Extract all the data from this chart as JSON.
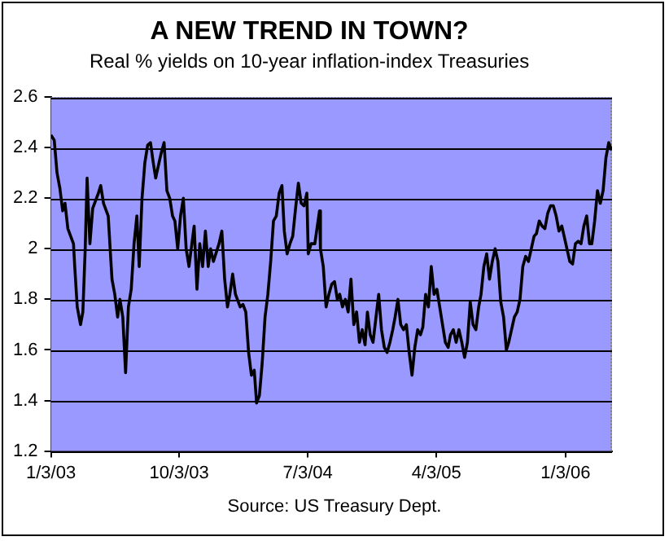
{
  "chart_data": {
    "type": "line",
    "title": "A NEW TREND IN TOWN?",
    "subtitle": "Real % yields on 10-year inflation-index Treasuries",
    "annotations": [
      "Source: US Treasury Dept."
    ],
    "xlim": [
      "2003-01-03",
      "2006-04-12"
    ],
    "xticks": [
      {
        "value": "2003-01-03",
        "label": "1/3/03"
      },
      {
        "value": "2003-10-03",
        "label": "10/3/03"
      },
      {
        "value": "2004-07-03",
        "label": "7/3/04"
      },
      {
        "value": "2005-04-03",
        "label": "4/3/05"
      },
      {
        "value": "2006-01-03",
        "label": "1/3/06"
      }
    ],
    "ylim": [
      1.2,
      2.6
    ],
    "yticks": [
      1.2,
      1.4,
      1.6,
      1.8,
      2,
      2.2,
      2.4,
      2.6
    ],
    "grid": "y",
    "legend": false,
    "marker": "none",
    "line_style": "solid",
    "series": [
      {
        "color": "#000000",
        "x": [
          "2003-01-03",
          "2003-01-10",
          "2003-01-16",
          "2003-01-22",
          "2003-01-28",
          "2003-02-02",
          "2003-02-08",
          "2003-02-14",
          "2003-02-20",
          "2003-02-23",
          "2003-02-28",
          "2003-03-07",
          "2003-03-12",
          "2003-03-17",
          "2003-03-21",
          "2003-03-27",
          "2003-04-02",
          "2003-04-14",
          "2003-04-19",
          "2003-04-25",
          "2003-05-05",
          "2003-05-13",
          "2003-05-19",
          "2003-05-25",
          "2003-05-30",
          "2003-06-05",
          "2003-06-11",
          "2003-06-17",
          "2003-06-23",
          "2003-06-29",
          "2003-07-05",
          "2003-07-10",
          "2003-07-16",
          "2003-07-22",
          "2003-07-28",
          "2003-08-03",
          "2003-08-09",
          "2003-08-14",
          "2003-08-20",
          "2003-08-26",
          "2003-09-01",
          "2003-09-07",
          "2003-09-13",
          "2003-09-19",
          "2003-09-24",
          "2003-09-30",
          "2003-10-06",
          "2003-10-12",
          "2003-10-18",
          "2003-10-24",
          "2003-11-04",
          "2003-11-10",
          "2003-11-16",
          "2003-11-22",
          "2003-11-28",
          "2003-12-04",
          "2003-12-09",
          "2003-12-15",
          "2003-12-27",
          "2004-01-02",
          "2004-01-08",
          "2004-01-14",
          "2004-01-19",
          "2004-01-25",
          "2004-01-31",
          "2004-02-10",
          "2004-02-16",
          "2004-02-22",
          "2004-02-28",
          "2004-03-05",
          "2004-03-11",
          "2004-03-16",
          "2004-03-22",
          "2004-03-28",
          "2004-04-03",
          "2004-04-09",
          "2004-04-15",
          "2004-04-21",
          "2004-04-27",
          "2004-05-03",
          "2004-05-09",
          "2004-05-14",
          "2004-05-20",
          "2004-05-26",
          "2004-06-01",
          "2004-06-07",
          "2004-06-13",
          "2004-06-19",
          "2004-06-25",
          "2004-07-01",
          "2004-07-04",
          "2004-07-10",
          "2004-07-18",
          "2004-07-28",
          "2004-07-30",
          "2004-08-05",
          "2004-08-11",
          "2004-08-17",
          "2004-08-23",
          "2004-08-29",
          "2004-09-04",
          "2004-09-09",
          "2004-09-15",
          "2004-09-21",
          "2004-09-27",
          "2004-10-03",
          "2004-10-09",
          "2004-10-15",
          "2004-10-21",
          "2004-10-27",
          "2004-11-02",
          "2004-11-07",
          "2004-11-13",
          "2004-11-19",
          "2004-12-01",
          "2004-12-07",
          "2004-12-13",
          "2004-12-19",
          "2004-12-25",
          "2004-12-31",
          "2005-01-05",
          "2005-01-11",
          "2005-01-17",
          "2005-01-23",
          "2005-01-29",
          "2005-02-04",
          "2005-02-10",
          "2005-02-16",
          "2005-02-22",
          "2005-02-28",
          "2005-03-05",
          "2005-03-11",
          "2005-03-17",
          "2005-03-23",
          "2005-03-29",
          "2005-04-04",
          "2005-04-10",
          "2005-04-16",
          "2005-04-22",
          "2005-04-28",
          "2005-05-03",
          "2005-05-09",
          "2005-05-15",
          "2005-05-21",
          "2005-05-27",
          "2005-06-02",
          "2005-06-08",
          "2005-06-14",
          "2005-06-20",
          "2005-06-26",
          "2005-07-02",
          "2005-07-07",
          "2005-07-13",
          "2005-07-19",
          "2005-07-25",
          "2005-07-31",
          "2005-08-06",
          "2005-08-12",
          "2005-08-18",
          "2005-08-24",
          "2005-08-30",
          "2005-09-04",
          "2005-09-10",
          "2005-09-16",
          "2005-09-22",
          "2005-09-28",
          "2005-10-04",
          "2005-10-10",
          "2005-10-16",
          "2005-10-22",
          "2005-10-28",
          "2005-11-02",
          "2005-11-08",
          "2005-11-14",
          "2005-11-20",
          "2005-11-26",
          "2005-12-02",
          "2005-12-08",
          "2005-12-14",
          "2005-12-20",
          "2005-12-26",
          "2005-12-31",
          "2006-01-06",
          "2006-01-12",
          "2006-01-18",
          "2006-01-24",
          "2006-01-30",
          "2006-02-05",
          "2006-02-11",
          "2006-02-17",
          "2006-02-23",
          "2006-02-28",
          "2006-03-06",
          "2006-03-12",
          "2006-03-18",
          "2006-03-24",
          "2006-03-30",
          "2006-04-05",
          "2006-04-11"
        ],
        "values": [
          2.45,
          2.43,
          2.3,
          2.24,
          2.15,
          2.18,
          2.08,
          2.05,
          2.02,
          1.92,
          1.77,
          1.7,
          1.75,
          2.0,
          2.28,
          2.02,
          2.16,
          2.22,
          2.25,
          2.18,
          2.13,
          1.88,
          1.82,
          1.73,
          1.8,
          1.73,
          1.51,
          1.77,
          1.84,
          2.02,
          2.13,
          1.93,
          2.2,
          2.34,
          2.41,
          2.42,
          2.34,
          2.28,
          2.33,
          2.38,
          2.42,
          2.23,
          2.2,
          2.13,
          2.11,
          2.0,
          2.13,
          2.2,
          2.0,
          1.93,
          2.09,
          1.84,
          2.02,
          1.93,
          2.07,
          1.93,
          2.0,
          1.95,
          2.02,
          2.07,
          1.88,
          1.77,
          1.82,
          1.9,
          1.82,
          1.77,
          1.78,
          1.75,
          1.59,
          1.5,
          1.52,
          1.39,
          1.42,
          1.55,
          1.73,
          1.82,
          1.95,
          2.11,
          2.13,
          2.22,
          2.25,
          2.07,
          1.98,
          2.02,
          2.05,
          2.16,
          2.26,
          2.18,
          2.17,
          2.22,
          1.98,
          2.02,
          2.02,
          2.15,
          2.0,
          1.93,
          1.77,
          1.82,
          1.86,
          1.87,
          1.8,
          1.82,
          1.77,
          1.8,
          1.75,
          1.88,
          1.7,
          1.75,
          1.63,
          1.68,
          1.62,
          1.75,
          1.66,
          1.63,
          1.82,
          1.68,
          1.61,
          1.59,
          1.63,
          1.68,
          1.73,
          1.8,
          1.7,
          1.68,
          1.7,
          1.59,
          1.5,
          1.61,
          1.68,
          1.66,
          1.69,
          1.82,
          1.77,
          1.93,
          1.82,
          1.84,
          1.77,
          1.7,
          1.63,
          1.61,
          1.66,
          1.68,
          1.63,
          1.68,
          1.63,
          1.57,
          1.63,
          1.79,
          1.7,
          1.68,
          1.77,
          1.82,
          1.93,
          1.98,
          1.88,
          1.95,
          2.0,
          1.95,
          1.79,
          1.73,
          1.6,
          1.63,
          1.68,
          1.73,
          1.75,
          1.8,
          1.93,
          1.97,
          1.95,
          2.0,
          2.05,
          2.06,
          2.11,
          2.09,
          2.08,
          2.14,
          2.17,
          2.17,
          2.13,
          2.07,
          2.09,
          2.05,
          2.0,
          1.95,
          1.94,
          2.02,
          2.03,
          2.02,
          2.09,
          2.13,
          2.02,
          2.02,
          2.11,
          2.23,
          2.18,
          2.23,
          2.36,
          2.42,
          2.39
        ]
      }
    ]
  }
}
